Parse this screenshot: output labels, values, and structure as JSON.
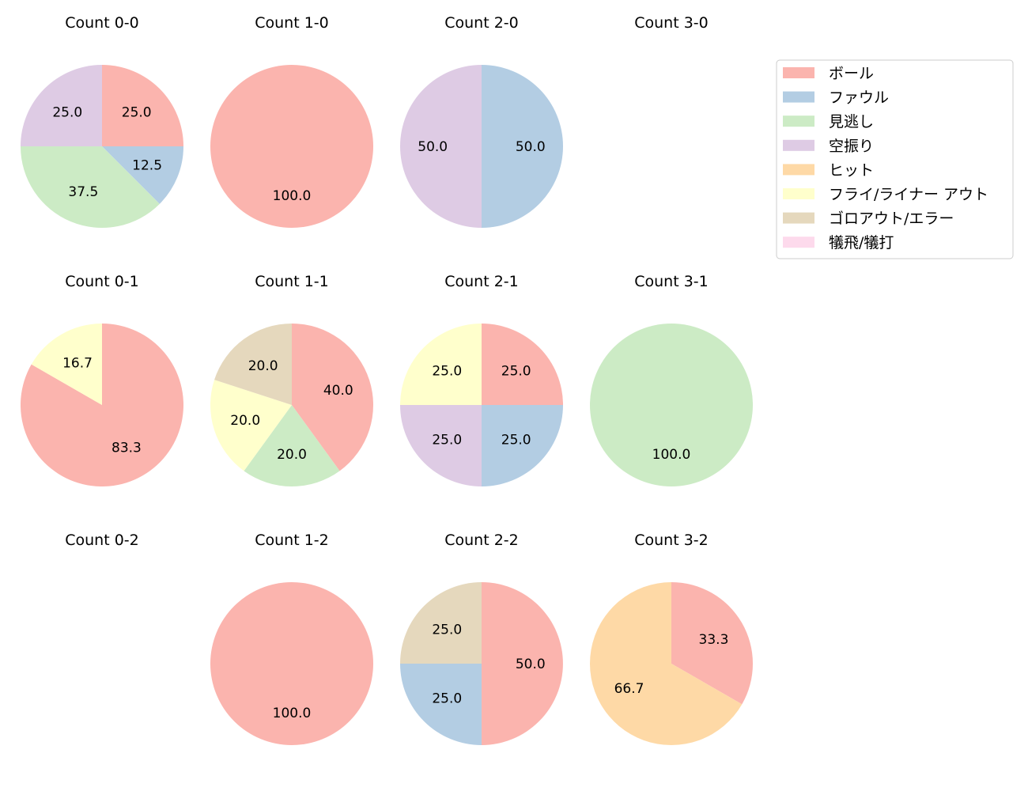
{
  "chart_data": {
    "type": "pie",
    "categories": [
      "ボール",
      "ファウル",
      "見逃し",
      "空振り",
      "ヒット",
      "フライ/ライナー アウト",
      "ゴロアウト/エラー",
      "犠飛/犠打"
    ],
    "colors": [
      "#fbb4ae",
      "#b3cde3",
      "#ccebc5",
      "#decbe4",
      "#fed9a6",
      "#ffffcc",
      "#e5d8bd",
      "#fddaec"
    ],
    "start_angle": 90,
    "direction": "clockwise",
    "legend_position": "right",
    "charts": [
      {
        "title": "Count 0-0",
        "values": [
          25.0,
          12.5,
          37.5,
          25.0,
          0,
          0,
          0,
          0
        ]
      },
      {
        "title": "Count 1-0",
        "values": [
          100.0,
          0,
          0,
          0,
          0,
          0,
          0,
          0
        ]
      },
      {
        "title": "Count 2-0",
        "values": [
          0,
          50.0,
          0,
          50.0,
          0,
          0,
          0,
          0
        ]
      },
      {
        "title": "Count 3-0",
        "values": []
      },
      {
        "title": "Count 0-1",
        "values": [
          83.3,
          0,
          0,
          0,
          0,
          16.7,
          0,
          0
        ]
      },
      {
        "title": "Count 1-1",
        "values": [
          40.0,
          0,
          20.0,
          0,
          0,
          20.0,
          20.0,
          0
        ]
      },
      {
        "title": "Count 2-1",
        "values": [
          25.0,
          25.0,
          0,
          25.0,
          0,
          25.0,
          0,
          0
        ]
      },
      {
        "title": "Count 3-1",
        "values": [
          0,
          0,
          100.0,
          0,
          0,
          0,
          0,
          0
        ]
      },
      {
        "title": "Count 0-2",
        "values": []
      },
      {
        "title": "Count 1-2",
        "values": [
          100.0,
          0,
          0,
          0,
          0,
          0,
          0,
          0
        ]
      },
      {
        "title": "Count 2-2",
        "values": [
          50.0,
          25.0,
          0,
          0,
          0,
          0,
          25.0,
          0
        ]
      },
      {
        "title": "Count 3-2",
        "values": [
          33.3,
          0,
          0,
          0,
          66.7,
          0,
          0,
          0
        ]
      }
    ]
  }
}
